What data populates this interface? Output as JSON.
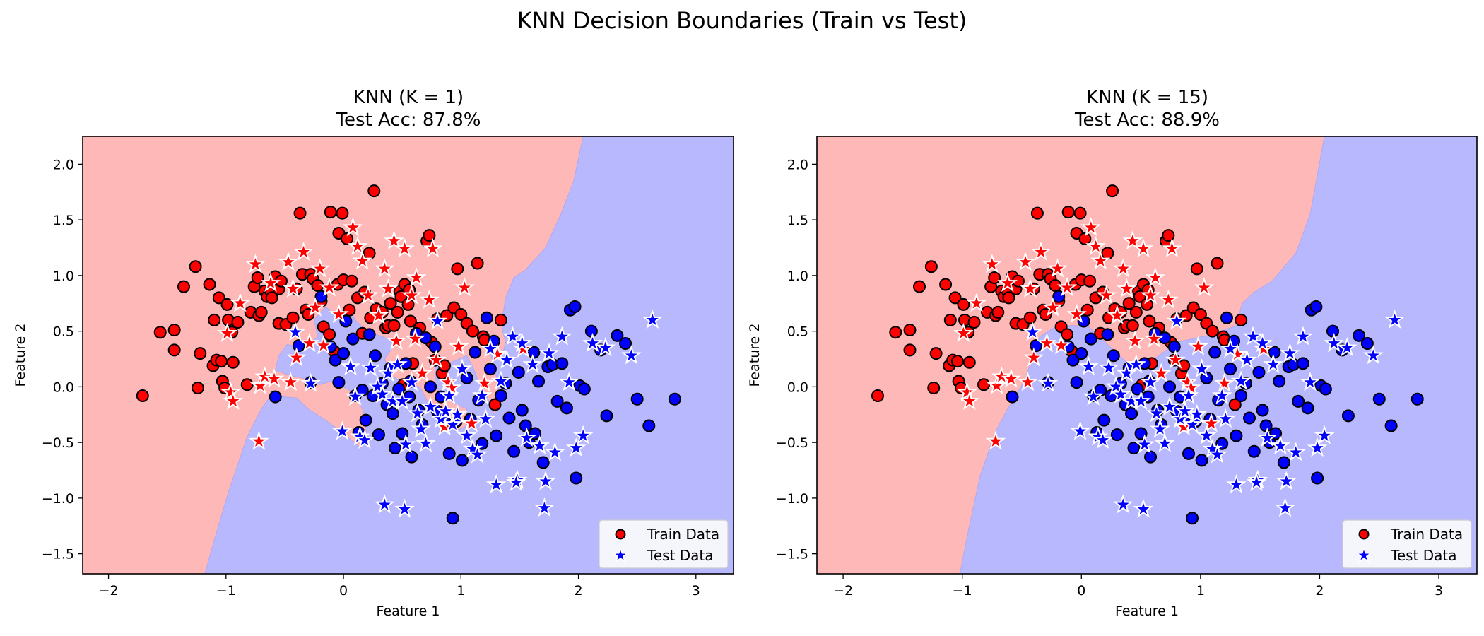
{
  "figure": {
    "suptitle": "KNN Decision Boundaries (Train vs Test)"
  },
  "colors": {
    "class0_region": "#ffb8b8",
    "class1_region": "#b8b8ff",
    "class0_point": "#ff0000",
    "class1_point": "#0000ff",
    "train_edge": "#000000",
    "test_edge": "#ffffff"
  },
  "chart_data": [
    {
      "type": "scatter",
      "title_line1": "KNN (K = 1)",
      "title_line2": "Test Acc: 87.8%",
      "k": 1,
      "test_accuracy_pct": 87.8,
      "xlabel": "Feature 1",
      "ylabel": "Feature 2",
      "xlim": [
        -2.22,
        3.32
      ],
      "ylim": [
        -1.68,
        2.25
      ],
      "xticks": [
        -2,
        -1,
        0,
        1,
        2,
        3
      ],
      "yticks": [
        -1.5,
        -1.0,
        -0.5,
        0.0,
        0.5,
        1.0,
        1.5,
        2.0
      ],
      "xtick_labels": [
        "−2",
        "−1",
        "0",
        "1",
        "2",
        "3"
      ],
      "ytick_labels": [
        "−1.5",
        "−1.0",
        "−0.5",
        "0.0",
        "0.5",
        "1.0",
        "1.5",
        "2.0"
      ],
      "grid": false,
      "legend": {
        "position": "lower-right",
        "entries": [
          "Train Data",
          "Test Data"
        ]
      },
      "boundary_type": "irregular",
      "boundary_top_x": 2.04,
      "boundary_bottom_x": -1.18
    },
    {
      "type": "scatter",
      "title_line1": "KNN (K = 15)",
      "title_line2": "Test Acc: 88.9%",
      "k": 15,
      "test_accuracy_pct": 88.9,
      "xlabel": "Feature 1",
      "ylabel": "Feature 2",
      "xlim": [
        -2.22,
        3.32
      ],
      "ylim": [
        -1.68,
        2.25
      ],
      "xticks": [
        -2,
        -1,
        0,
        1,
        2,
        3
      ],
      "yticks": [
        -1.5,
        -1.0,
        -0.5,
        0.0,
        0.5,
        1.0,
        1.5,
        2.0
      ],
      "xtick_labels": [
        "−2",
        "−1",
        "0",
        "1",
        "2",
        "3"
      ],
      "ytick_labels": [
        "−1.5",
        "−1.0",
        "−0.5",
        "0.0",
        "0.5",
        "1.0",
        "1.5",
        "2.0"
      ],
      "grid": false,
      "legend": {
        "position": "lower-right",
        "entries": [
          "Train Data",
          "Test Data"
        ]
      },
      "boundary_type": "smooth",
      "boundary_top_x": 2.04,
      "boundary_bottom_x": -1.02
    }
  ],
  "points": {
    "train_class0": [
      [
        -1.71,
        -0.08
      ],
      [
        -1.56,
        0.49
      ],
      [
        -1.44,
        0.51
      ],
      [
        -1.44,
        0.33
      ],
      [
        -1.36,
        0.9
      ],
      [
        -1.26,
        1.08
      ],
      [
        -1.24,
        -0.01
      ],
      [
        -1.22,
        0.3
      ],
      [
        -1.14,
        0.92
      ],
      [
        -1.11,
        0.19
      ],
      [
        -1.1,
        0.6
      ],
      [
        -1.08,
        0.24
      ],
      [
        -1.06,
        0.8
      ],
      [
        -1.04,
        0.23
      ],
      [
        -1.03,
        0.05
      ],
      [
        -1.01,
        -0.01
      ],
      [
        -0.99,
        0.74
      ],
      [
        -0.98,
        0.6
      ],
      [
        -0.95,
        0.49
      ],
      [
        -0.94,
        0.22
      ],
      [
        -0.9,
        0.58
      ],
      [
        -0.82,
        0.02
      ],
      [
        -0.79,
        0.67
      ],
      [
        -0.76,
        0.9
      ],
      [
        -0.73,
        0.98
      ],
      [
        -0.72,
        0.64
      ],
      [
        -0.7,
        0.67
      ],
      [
        -0.67,
        0.86
      ],
      [
        -0.65,
        0.81
      ],
      [
        -0.62,
        0.86
      ],
      [
        -0.61,
        0.8
      ],
      [
        -0.58,
        0.99
      ],
      [
        -0.55,
        0.88
      ],
      [
        -0.55,
        0.57
      ],
      [
        -0.53,
        0.95
      ],
      [
        -0.49,
        0.56
      ],
      [
        -0.43,
        0.62
      ],
      [
        -0.4,
        0.88
      ],
      [
        -0.37,
        1.56
      ],
      [
        -0.35,
        1.01
      ],
      [
        -0.32,
        0.69
      ],
      [
        -0.3,
        0.65
      ],
      [
        -0.28,
        1.01
      ],
      [
        -0.26,
        0.97
      ],
      [
        -0.22,
        0.91
      ],
      [
        -0.19,
        0.77
      ],
      [
        -0.17,
        0.54
      ],
      [
        -0.12,
        0.47
      ],
      [
        -0.11,
        1.57
      ],
      [
        -0.08,
        0.32
      ],
      [
        -0.05,
        0.92
      ],
      [
        -0.04,
        1.38
      ],
      [
        -0.01,
        1.56
      ],
      [
        0.0,
        0.96
      ],
      [
        0.03,
        1.33
      ],
      [
        0.05,
        0.69
      ],
      [
        0.07,
        0.95
      ],
      [
        0.12,
        0.8
      ],
      [
        0.16,
        0.48
      ],
      [
        0.18,
        0.85
      ],
      [
        0.22,
        1.2
      ],
      [
        0.23,
        0.62
      ],
      [
        0.26,
        1.76
      ],
      [
        0.28,
        0.7
      ],
      [
        0.33,
        0.67
      ],
      [
        0.36,
        0.53
      ],
      [
        0.38,
        0.55
      ],
      [
        0.4,
        0.75
      ],
      [
        0.43,
        0.55
      ],
      [
        0.46,
        0.67
      ],
      [
        0.48,
        0.86
      ],
      [
        0.49,
        0.81
      ],
      [
        0.52,
        0.92
      ],
      [
        0.55,
        0.74
      ],
      [
        0.56,
        0.87
      ],
      [
        0.57,
        0.59
      ],
      [
        0.59,
        0.21
      ],
      [
        0.62,
        0.47
      ],
      [
        0.65,
        0.53
      ],
      [
        0.71,
        1.31
      ],
      [
        0.73,
        1.36
      ],
      [
        0.75,
        0.4
      ],
      [
        0.78,
        0.24
      ],
      [
        0.8,
        0.61
      ],
      [
        0.84,
        0.12
      ],
      [
        0.86,
        0.19
      ],
      [
        0.88,
        0.64
      ],
      [
        0.94,
        0.71
      ],
      [
        0.97,
        1.06
      ],
      [
        1.0,
        0.65
      ],
      [
        1.05,
        0.57
      ],
      [
        1.1,
        0.5
      ],
      [
        1.14,
        1.11
      ],
      [
        1.19,
        0.45
      ],
      [
        1.2,
        0.42
      ],
      [
        1.29,
        -0.16
      ],
      [
        1.34,
        0.6
      ],
      [
        0.51,
        0.02
      ]
    ],
    "train_class1": [
      [
        -0.58,
        -0.09
      ],
      [
        -0.38,
        0.37
      ],
      [
        -0.28,
        0.04
      ],
      [
        -0.19,
        0.81
      ],
      [
        -0.11,
        0.36
      ],
      [
        -0.07,
        0.24
      ],
      [
        -0.04,
        0.04
      ],
      [
        0.0,
        0.3
      ],
      [
        0.02,
        0.59
      ],
      [
        0.08,
        0.43
      ],
      [
        0.1,
        -0.08
      ],
      [
        0.13,
        -0.41
      ],
      [
        0.16,
        -0.03
      ],
      [
        0.19,
        -0.3
      ],
      [
        0.22,
        0.47
      ],
      [
        0.25,
        -0.08
      ],
      [
        0.27,
        0.28
      ],
      [
        0.3,
        -0.43
      ],
      [
        0.33,
        0.03
      ],
      [
        0.37,
        -0.16
      ],
      [
        0.4,
        0.17
      ],
      [
        0.42,
        -0.24
      ],
      [
        0.44,
        -0.55
      ],
      [
        0.47,
        -0.02
      ],
      [
        0.5,
        -0.42
      ],
      [
        0.53,
        0.21
      ],
      [
        0.56,
        -0.09
      ],
      [
        0.58,
        -0.63
      ],
      [
        0.62,
        0.48
      ],
      [
        0.64,
        -0.21
      ],
      [
        0.67,
        -0.34
      ],
      [
        0.7,
        0.44
      ],
      [
        0.74,
        0.0
      ],
      [
        0.78,
        0.36
      ],
      [
        0.8,
        -0.22
      ],
      [
        0.83,
        -0.09
      ],
      [
        0.87,
        -0.32
      ],
      [
        0.9,
        -0.6
      ],
      [
        0.93,
        -1.18
      ],
      [
        0.96,
        -0.31
      ],
      [
        1.01,
        -0.66
      ],
      [
        1.05,
        0.08
      ],
      [
        1.08,
        -0.29
      ],
      [
        1.12,
        0.31
      ],
      [
        1.15,
        -0.12
      ],
      [
        1.18,
        -0.51
      ],
      [
        1.22,
        0.62
      ],
      [
        1.25,
        0.16
      ],
      [
        1.28,
        0.41
      ],
      [
        1.3,
        -0.44
      ],
      [
        1.34,
        -0.08
      ],
      [
        1.38,
        0.03
      ],
      [
        1.41,
        -0.28
      ],
      [
        1.45,
        -0.58
      ],
      [
        1.49,
        0.13
      ],
      [
        1.52,
        -0.21
      ],
      [
        1.55,
        -0.35
      ],
      [
        1.58,
        -0.5
      ],
      [
        1.62,
        0.31
      ],
      [
        1.66,
        0.05
      ],
      [
        1.7,
        -0.68
      ],
      [
        1.74,
        0.18
      ],
      [
        1.78,
        0.2
      ],
      [
        1.82,
        -0.13
      ],
      [
        1.86,
        0.21
      ],
      [
        1.9,
        -0.19
      ],
      [
        1.93,
        0.69
      ],
      [
        1.97,
        0.72
      ],
      [
        2.01,
        0.01
      ],
      [
        2.05,
        -0.02
      ],
      [
        2.11,
        0.5
      ],
      [
        2.19,
        0.33
      ],
      [
        2.24,
        -0.26
      ],
      [
        2.33,
        0.46
      ],
      [
        2.4,
        0.39
      ],
      [
        2.5,
        -0.11
      ],
      [
        2.6,
        -0.35
      ],
      [
        2.82,
        -0.11
      ],
      [
        1.98,
        -0.82
      ],
      [
        1.63,
        -0.42
      ],
      [
        0.57,
        0.05
      ]
    ],
    "test_class0": [
      [
        -0.99,
        0.48
      ],
      [
        -0.96,
        -0.05
      ],
      [
        -0.94,
        -0.13
      ],
      [
        -0.88,
        0.75
      ],
      [
        -0.75,
        1.1
      ],
      [
        -0.72,
        -0.49
      ],
      [
        -0.71,
        0.01
      ],
      [
        -0.67,
        0.09
      ],
      [
        -0.62,
        0.93
      ],
      [
        -0.59,
        0.07
      ],
      [
        -0.47,
        1.12
      ],
      [
        -0.45,
        0.04
      ],
      [
        -0.43,
        0.88
      ],
      [
        -0.4,
        0.26
      ],
      [
        -0.34,
        1.21
      ],
      [
        -0.29,
        0.39
      ],
      [
        -0.24,
        0.71
      ],
      [
        -0.2,
        1.06
      ],
      [
        -0.17,
        0.37
      ],
      [
        -0.12,
        0.89
      ],
      [
        -0.04,
        0.65
      ],
      [
        0.08,
        1.43
      ],
      [
        0.12,
        1.26
      ],
      [
        0.16,
        1.13
      ],
      [
        0.21,
        0.82
      ],
      [
        0.3,
        0.64
      ],
      [
        0.35,
        1.06
      ],
      [
        0.38,
        0.88
      ],
      [
        0.43,
        1.31
      ],
      [
        0.45,
        0.41
      ],
      [
        0.52,
        1.24
      ],
      [
        0.58,
        0.82
      ],
      [
        0.61,
        0.43
      ],
      [
        0.67,
        0.12
      ],
      [
        0.73,
        0.78
      ],
      [
        0.79,
        0.24
      ],
      [
        0.86,
        -0.36
      ],
      [
        0.89,
        0.04
      ],
      [
        0.92,
        -0.01
      ],
      [
        0.98,
        0.36
      ],
      [
        1.09,
        -0.33
      ],
      [
        1.2,
        0.03
      ],
      [
        1.31,
        0.29
      ],
      [
        1.53,
        0.34
      ],
      [
        0.62,
        0.98
      ],
      [
        0.76,
        1.24
      ],
      [
        1.03,
        0.89
      ]
    ],
    "test_class1": [
      [
        -0.41,
        0.49
      ],
      [
        -0.28,
        0.03
      ],
      [
        -0.01,
        -0.4
      ],
      [
        0.06,
        0.18
      ],
      [
        0.1,
        -0.09
      ],
      [
        0.14,
        -0.45
      ],
      [
        0.18,
        -0.48
      ],
      [
        0.23,
        0.17
      ],
      [
        0.29,
        0.0
      ],
      [
        0.33,
        -0.07
      ],
      [
        0.38,
        0.12
      ],
      [
        0.42,
        -0.13
      ],
      [
        0.46,
        0.2
      ],
      [
        0.5,
        -0.13
      ],
      [
        0.53,
        -0.52
      ],
      [
        0.58,
        0.04
      ],
      [
        0.63,
        -0.24
      ],
      [
        0.66,
        -0.38
      ],
      [
        0.7,
        -0.51
      ],
      [
        0.74,
        -0.18
      ],
      [
        0.8,
        0.59
      ],
      [
        0.83,
        -0.29
      ],
      [
        0.87,
        -0.22
      ],
      [
        0.9,
        -0.08
      ],
      [
        0.93,
        -0.34
      ],
      [
        0.97,
        -0.25
      ],
      [
        1.01,
        0.16
      ],
      [
        1.05,
        -0.44
      ],
      [
        1.1,
        -0.56
      ],
      [
        1.14,
        -0.61
      ],
      [
        1.18,
        -0.08
      ],
      [
        1.21,
        -0.29
      ],
      [
        1.25,
        0.34
      ],
      [
        1.3,
        -0.88
      ],
      [
        1.34,
        0.05
      ],
      [
        1.39,
        0.24
      ],
      [
        1.44,
        0.45
      ],
      [
        1.48,
        -0.84
      ],
      [
        1.52,
        0.39
      ],
      [
        1.56,
        -0.46
      ],
      [
        1.61,
        0.2
      ],
      [
        1.67,
        -0.53
      ],
      [
        1.71,
        -1.09
      ],
      [
        1.75,
        0.3
      ],
      [
        1.8,
        -0.59
      ],
      [
        1.86,
        0.45
      ],
      [
        1.92,
        0.04
      ],
      [
        1.98,
        -0.55
      ],
      [
        2.04,
        -0.44
      ],
      [
        2.12,
        0.39
      ],
      [
        2.23,
        0.35
      ],
      [
        2.45,
        0.28
      ],
      [
        2.63,
        0.6
      ],
      [
        0.35,
        -1.06
      ],
      [
        0.52,
        -1.1
      ],
      [
        1.72,
        -0.85
      ],
      [
        1.47,
        -0.86
      ]
    ]
  }
}
